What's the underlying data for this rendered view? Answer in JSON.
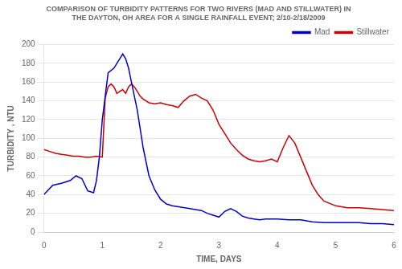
{
  "chart_data": {
    "type": "line",
    "title": "COMPARISON OF TURBIDITY PATTERNS FOR TWO RIVERS (MAD AND STILLWATER) IN\nTHE DAYTON, OH AREA FOR A SINGLE RAINFALL EVENT; 2/10-2/18/2009",
    "x_label": "TIME, DAYS",
    "y_label": "TURBIDITY , NTU",
    "xlim": [
      0,
      6
    ],
    "ylim": [
      0,
      200
    ],
    "xticks": [
      0,
      1,
      2,
      3,
      4,
      5,
      6
    ],
    "yticks": [
      0,
      20,
      40,
      60,
      80,
      100,
      120,
      140,
      160,
      180,
      200
    ],
    "grid": "y",
    "legend": "upper right",
    "series": [
      {
        "name": "Mad",
        "color": "#0000cc",
        "x": [
          0,
          0.15,
          0.3,
          0.45,
          0.55,
          0.65,
          0.75,
          0.85,
          0.9,
          0.95,
          1.0,
          1.05,
          1.1,
          1.2,
          1.3,
          1.35,
          1.4,
          1.45,
          1.5,
          1.55,
          1.6,
          1.65,
          1.7,
          1.75,
          1.8,
          1.9,
          2.0,
          2.1,
          2.2,
          2.5,
          2.7,
          2.8,
          2.9,
          3.0,
          3.1,
          3.2,
          3.3,
          3.4,
          3.5,
          3.6,
          3.7,
          3.8,
          4.0,
          4.2,
          4.4,
          4.6,
          4.8,
          5.0,
          5.2,
          5.4,
          5.6,
          5.8,
          6.0
        ],
        "values": [
          40,
          50,
          52,
          55,
          60,
          57,
          44,
          42,
          55,
          80,
          120,
          145,
          170,
          175,
          185,
          190,
          185,
          175,
          160,
          145,
          130,
          110,
          90,
          75,
          60,
          45,
          35,
          30,
          28,
          25,
          23,
          20,
          18,
          16,
          22,
          25,
          22,
          17,
          15,
          14,
          13,
          14,
          14,
          13,
          13,
          11,
          10,
          10,
          10,
          10,
          9,
          9,
          8
        ]
      },
      {
        "name": "Stillwater",
        "color": "#cc0000",
        "x": [
          0,
          0.1,
          0.2,
          0.3,
          0.4,
          0.5,
          0.6,
          0.7,
          0.8,
          0.9,
          1.0,
          1.05,
          1.1,
          1.15,
          1.2,
          1.25,
          1.3,
          1.35,
          1.4,
          1.45,
          1.5,
          1.55,
          1.6,
          1.65,
          1.7,
          1.75,
          1.8,
          1.9,
          2.0,
          2.1,
          2.2,
          2.3,
          2.4,
          2.5,
          2.6,
          2.7,
          2.8,
          2.9,
          3.0,
          3.1,
          3.2,
          3.3,
          3.4,
          3.5,
          3.6,
          3.7,
          3.8,
          3.9,
          4.0,
          4.1,
          4.2,
          4.3,
          4.4,
          4.5,
          4.6,
          4.7,
          4.8,
          5.0,
          5.2,
          5.4,
          5.6,
          5.8,
          6.0
        ],
        "values": [
          88,
          86,
          84,
          83,
          82,
          81,
          81,
          80,
          80,
          81,
          80,
          143,
          155,
          158,
          155,
          148,
          150,
          152,
          148,
          155,
          158,
          155,
          150,
          145,
          142,
          140,
          138,
          137,
          138,
          136,
          135,
          133,
          140,
          145,
          147,
          143,
          140,
          130,
          115,
          105,
          95,
          88,
          82,
          78,
          76,
          75,
          76,
          78,
          75,
          90,
          103,
          95,
          80,
          65,
          50,
          40,
          33,
          28,
          26,
          26,
          25,
          24,
          23
        ]
      }
    ]
  }
}
